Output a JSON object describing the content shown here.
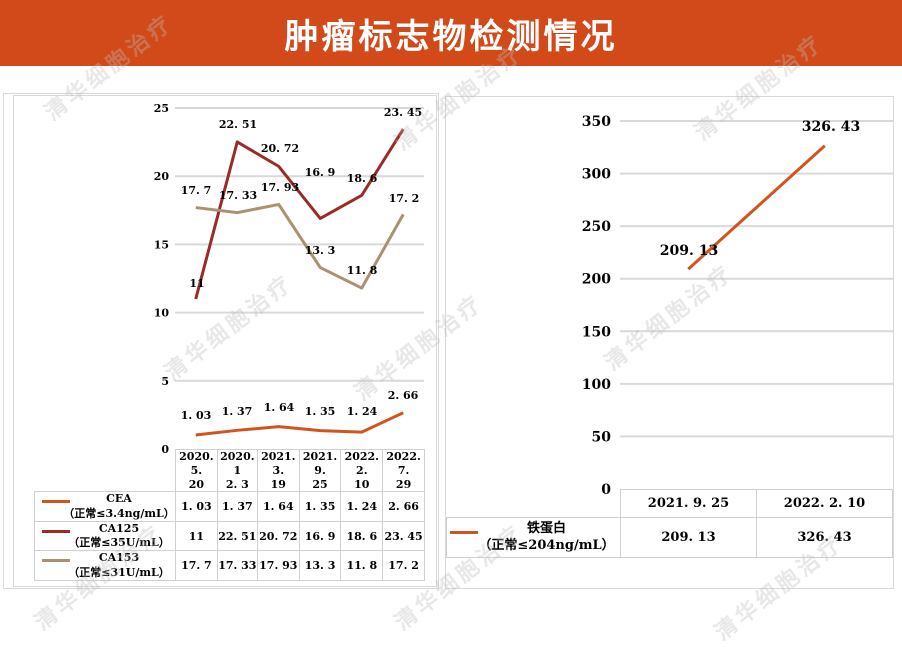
{
  "header": {
    "title": "肿瘤标志物检测情况"
  },
  "watermark_text": "清华细胞治疗",
  "colors": {
    "header_bg": "#d24a1a",
    "cea": "#d0541f",
    "ca125": "#9b2b26",
    "ca153": "#a89272",
    "ferritin": "#d0541f",
    "grid": "#d9d9d9"
  },
  "left_chart": {
    "y_ticks": [
      "25",
      "20",
      "15",
      "10",
      "5",
      "0"
    ],
    "categories": [
      "2020.5.\n20",
      "2020.1\n2.3",
      "2021.3.\n19",
      "2021.9.\n25",
      "2022.2.\n10",
      "2022.7.\n29"
    ],
    "category_lines": [
      [
        "2020. 5.",
        "20"
      ],
      [
        "2020. 1",
        "2. 3"
      ],
      [
        "2021. 3.",
        "19"
      ],
      [
        "2021. 9.",
        "25"
      ],
      [
        "2022. 2.",
        "10"
      ],
      [
        "2022. 7.",
        "29"
      ]
    ],
    "series": [
      {
        "name": "CEA",
        "note": "（正常≤3.4ng/mL）",
        "labels": [
          "1. 03",
          "1. 37",
          "1. 64",
          "1. 35",
          "1. 24",
          "2. 66"
        ]
      },
      {
        "name": "CA125",
        "note": "（正常≤35U/mL）",
        "labels": [
          "11",
          "22. 51",
          "20. 72",
          "16. 9",
          "18. 6",
          "23. 45"
        ]
      },
      {
        "name": "CA153",
        "note": "（正常≤31U/mL）",
        "labels": [
          "17. 7",
          "17. 33",
          "17. 93",
          "13. 3",
          "11. 8",
          "17. 2"
        ]
      }
    ]
  },
  "right_chart": {
    "y_ticks": [
      "350",
      "300",
      "250",
      "200",
      "150",
      "100",
      "50",
      "0"
    ],
    "categories": [
      "2021. 9. 25",
      "2022. 2. 10"
    ],
    "series": [
      {
        "name": "铁蛋白",
        "note": "（正常≤204ng/mL）",
        "labels": [
          "209. 13",
          "326. 43"
        ]
      }
    ]
  },
  "chart_data": [
    {
      "type": "line",
      "title": "",
      "xlabel": "",
      "ylabel": "",
      "categories": [
        "2020.5.20",
        "2020.12.3",
        "2021.3.19",
        "2021.9.25",
        "2022.2.10",
        "2022.7.29"
      ],
      "series": [
        {
          "name": "CEA（正常≤3.4ng/mL）",
          "values": [
            1.03,
            1.37,
            1.64,
            1.35,
            1.24,
            2.66
          ],
          "color": "#d0541f"
        },
        {
          "name": "CA125（正常≤35U/mL）",
          "values": [
            11,
            22.51,
            20.72,
            16.9,
            18.6,
            23.45
          ],
          "color": "#9b2b26"
        },
        {
          "name": "CA153（正常≤31U/mL）",
          "values": [
            17.7,
            17.33,
            17.93,
            13.3,
            11.8,
            17.2
          ],
          "color": "#a89272"
        }
      ],
      "ylim": [
        0,
        25
      ],
      "y_ticks": [
        0,
        5,
        10,
        15,
        20,
        25
      ],
      "grid": true,
      "legend_position": "data-table-below",
      "data_labels": true
    },
    {
      "type": "line",
      "title": "",
      "xlabel": "",
      "ylabel": "",
      "categories": [
        "2021.9.25",
        "2022.2.10"
      ],
      "series": [
        {
          "name": "铁蛋白（正常≤204ng/mL）",
          "values": [
            209.13,
            326.43
          ],
          "color": "#d0541f"
        }
      ],
      "ylim": [
        0,
        350
      ],
      "y_ticks": [
        0,
        50,
        100,
        150,
        200,
        250,
        300,
        350
      ],
      "grid": true,
      "legend_position": "data-table-below",
      "data_labels": true
    }
  ]
}
